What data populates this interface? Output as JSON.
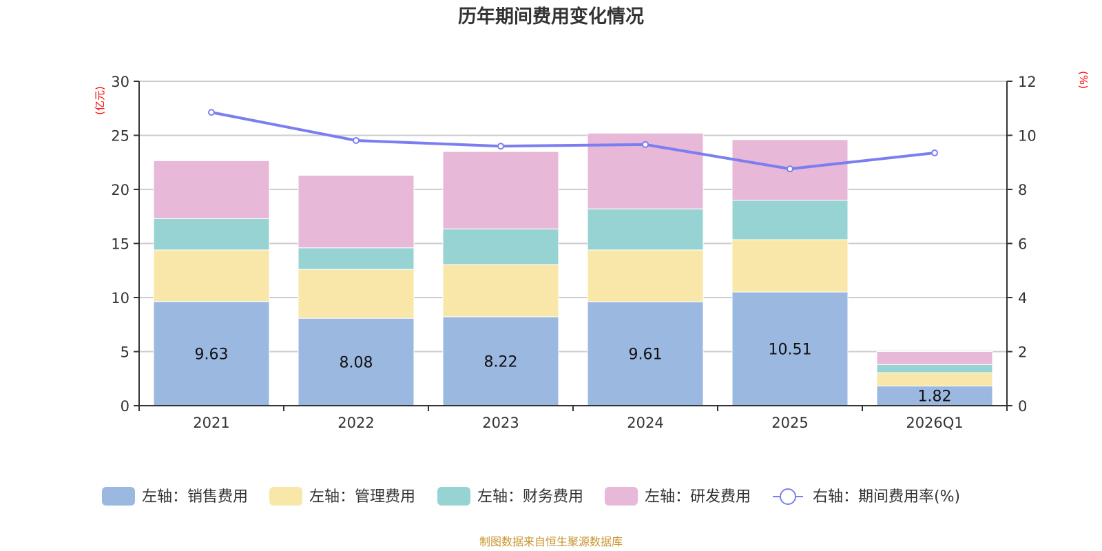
{
  "chart_data": {
    "type": "bar",
    "stacked": true,
    "title": "历年期间费用变化情况",
    "categories": [
      "2021",
      "2022",
      "2023",
      "2024",
      "2025",
      "2026Q1"
    ],
    "left_axis": {
      "unit_label": "(亿元)",
      "ylim": [
        0,
        30
      ],
      "ticks": [
        0,
        5,
        10,
        15,
        20,
        25,
        30
      ]
    },
    "right_axis": {
      "unit_label": "(%)",
      "ylim": [
        0,
        12
      ],
      "ticks": [
        0,
        2,
        4,
        6,
        8,
        10,
        12
      ]
    },
    "grid": true,
    "series": [
      {
        "name": "左轴：销售费用",
        "axis": "left",
        "type": "bar",
        "color": "#9bb8e1",
        "values": [
          9.63,
          8.08,
          8.22,
          9.61,
          10.51,
          1.82
        ],
        "show_labels": true
      },
      {
        "name": "左轴：管理费用",
        "axis": "left",
        "type": "bar",
        "color": "#f8e7a9",
        "values": [
          4.77,
          4.52,
          4.83,
          4.79,
          4.84,
          1.23
        ],
        "show_labels": false
      },
      {
        "name": "左轴：财务费用",
        "axis": "left",
        "type": "bar",
        "color": "#98d3d3",
        "values": [
          2.9,
          2.0,
          3.3,
          3.8,
          3.65,
          0.75
        ],
        "show_labels": false
      },
      {
        "name": "左轴：研发费用",
        "axis": "left",
        "type": "bar",
        "color": "#e7b8d7",
        "values": [
          5.35,
          6.7,
          7.15,
          7.0,
          5.6,
          1.2
        ],
        "show_labels": false
      },
      {
        "name": "右轴：期间费用率(%)",
        "axis": "right",
        "type": "line",
        "color": "#7b7ef0",
        "values": [
          10.85,
          9.81,
          9.6,
          9.66,
          8.76,
          9.35
        ],
        "show_labels": false
      }
    ],
    "legend_position": "bottom"
  },
  "source_note": "制图数据来自恒生聚源数据库"
}
